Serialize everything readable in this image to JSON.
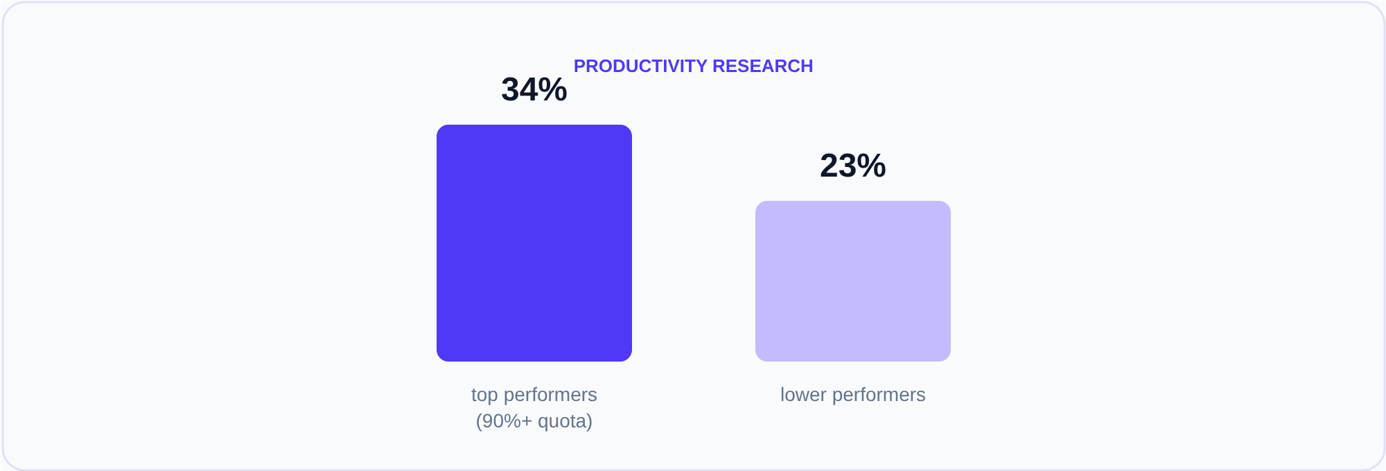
{
  "chart_data": {
    "type": "bar",
    "title": "PRODUCTIVITY RESEARCH",
    "categories": [
      "top performers\n(90%+ quota)",
      "lower performers"
    ],
    "values": [
      34,
      23
    ],
    "colors": [
      "#4f39f6",
      "#c4bbfc"
    ],
    "value_labels": [
      "34%",
      "23%"
    ]
  }
}
